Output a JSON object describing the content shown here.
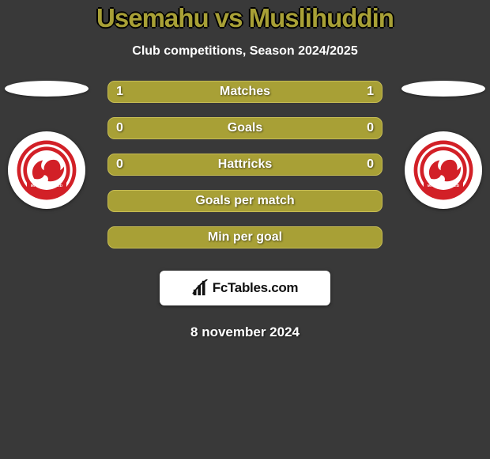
{
  "colors": {
    "bg": "#393939",
    "accent": "#a8a036",
    "row_fill": "#a8a036",
    "row_border": "#c7bd54"
  },
  "title": {
    "text": "Usemahu vs Muslihuddin",
    "fontsize": 33
  },
  "subtitle": {
    "text": "Club competitions, Season 2024/2025",
    "fontsize": 16
  },
  "team_badge": {
    "ring": "#d22027",
    "ring_inner": "#ffffff",
    "band": "#d22027",
    "band_text": "MADURA UNITED",
    "bull": "#d22027"
  },
  "stats": {
    "label_fontsize": 16,
    "value_fontsize": 16,
    "rows": [
      {
        "left": "1",
        "label": "Matches",
        "right": "1"
      },
      {
        "left": "0",
        "label": "Goals",
        "right": "0"
      },
      {
        "left": "0",
        "label": "Hattricks",
        "right": "0"
      },
      {
        "left": "",
        "label": "Goals per match",
        "right": ""
      },
      {
        "left": "",
        "label": "Min per goal",
        "right": ""
      }
    ]
  },
  "brand": {
    "text": "FcTables.com"
  },
  "date": "8 november 2024"
}
